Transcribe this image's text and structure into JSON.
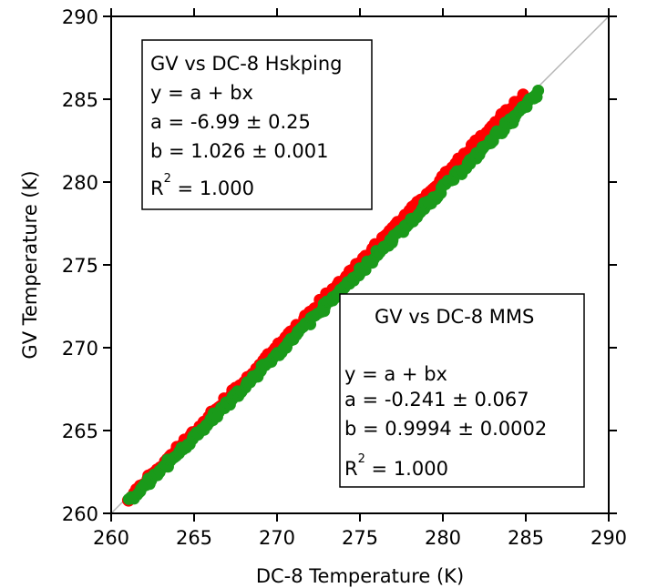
{
  "chart_data": {
    "type": "scatter",
    "xlabel": "DC-8 Temperature (K)",
    "ylabel": "GV Temperature (K)",
    "xlim": [
      260,
      290
    ],
    "ylim": [
      260,
      290
    ],
    "xticks": [
      "260",
      "265",
      "270",
      "275",
      "280",
      "285",
      "290"
    ],
    "yticks": [
      "260",
      "265",
      "270",
      "275",
      "280",
      "285",
      "290"
    ],
    "grid": false,
    "reference_line": "1:1",
    "series": [
      {
        "name": "GV vs DC-8 Hskping",
        "color": "#ff0000",
        "x_range": [
          261.0,
          284.8
        ],
        "slope": 1.026,
        "intercept": -6.99
      },
      {
        "name": "GV vs DC-8 MMS",
        "color": "#1a9a1a",
        "x_range": [
          261.1,
          285.8
        ],
        "slope": 0.9994,
        "intercept": -0.241
      }
    ],
    "annotations": [
      {
        "title": "GV vs DC-8 Hskping",
        "title_color": "#ff0000",
        "eq": "y = a + bx",
        "a": "a = -6.99 ± 0.25",
        "b": "b = 1.026 ± 0.001",
        "r_base": "R",
        "r_sup": "2",
        "r_val": " = 1.000"
      },
      {
        "title": "GV vs DC-8 MMS",
        "title_color": "#1a9a1a",
        "eq": "y = a + bx",
        "a": "a = -0.241 ± 0.067",
        "b": "b = 0.9994 ± 0.0002",
        "r_base": "R",
        "r_sup": "2",
        "r_val": " = 1.000"
      }
    ]
  }
}
